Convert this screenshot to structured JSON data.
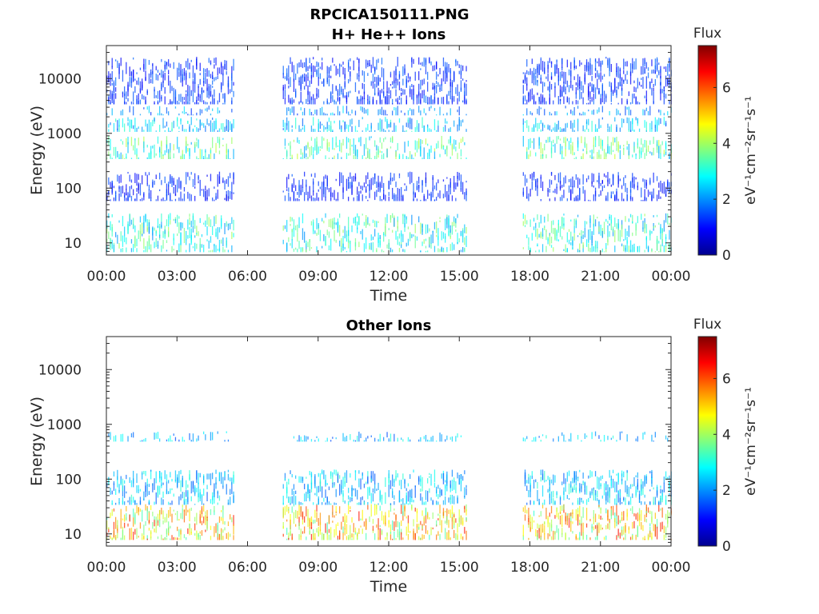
{
  "figure_title": "RPCICA150111.PNG",
  "chart_data": [
    {
      "type": "heatmap",
      "title": "H+ He++ Ions",
      "xlabel": "Time",
      "ylabel": "Energy (eV)",
      "yscale": "log",
      "ylim": [
        6,
        40000
      ],
      "xlim": [
        0,
        24
      ],
      "xticks": [
        0,
        3,
        6,
        9,
        12,
        15,
        18,
        21,
        24
      ],
      "xtick_labels": [
        "00:00",
        "03:00",
        "06:00",
        "09:00",
        "12:00",
        "15:00",
        "18:00",
        "21:00",
        "00:00"
      ],
      "yticks": [
        10,
        100,
        1000,
        10000
      ],
      "ytick_labels": [
        "10",
        "100",
        "1000",
        "10000"
      ],
      "colorbar": {
        "label": "Flux",
        "units_label": "eV⁻¹cm⁻²sr⁻¹s⁻¹",
        "range": [
          0,
          7.5
        ],
        "ticks": [
          0,
          2,
          4,
          6
        ],
        "tick_labels": [
          "0",
          "2",
          "4",
          "6"
        ],
        "colormap": "jet"
      },
      "data_intervals_hours": [
        [
          0,
          5.4
        ],
        [
          7.5,
          15.3
        ],
        [
          17.7,
          24
        ]
      ],
      "bands": [
        {
          "e_low": 7,
          "e_high": 35,
          "flux": 3.0
        },
        {
          "e_low": 60,
          "e_high": 200,
          "flux": 1.2
        },
        {
          "e_low": 350,
          "e_high": 900,
          "flux": 3.2
        },
        {
          "e_low": 1100,
          "e_high": 2000,
          "flux": 2.4
        },
        {
          "e_low": 2200,
          "e_high": 3200,
          "flux": 2.0
        },
        {
          "e_low": 3500,
          "e_high": 25000,
          "flux": 1.3
        }
      ]
    },
    {
      "type": "heatmap",
      "title": "Other Ions",
      "xlabel": "Time",
      "ylabel": "Energy (eV)",
      "yscale": "log",
      "ylim": [
        6,
        40000
      ],
      "xlim": [
        0,
        24
      ],
      "xticks": [
        0,
        3,
        6,
        9,
        12,
        15,
        18,
        21,
        24
      ],
      "xtick_labels": [
        "00:00",
        "03:00",
        "06:00",
        "09:00",
        "12:00",
        "15:00",
        "18:00",
        "21:00",
        "00:00"
      ],
      "yticks": [
        10,
        100,
        1000,
        10000
      ],
      "ytick_labels": [
        "10",
        "100",
        "1000",
        "10000"
      ],
      "colorbar": {
        "label": "Flux",
        "units_label": "eV⁻¹cm⁻²sr⁻¹s⁻¹",
        "range": [
          0,
          7.5
        ],
        "ticks": [
          0,
          2,
          4,
          6
        ],
        "tick_labels": [
          "0",
          "2",
          "4",
          "6"
        ],
        "colormap": "jet"
      },
      "data_intervals_hours": [
        [
          0,
          5.4
        ],
        [
          7.5,
          15.3
        ],
        [
          17.7,
          24
        ]
      ],
      "bands": [
        {
          "e_low": 8,
          "e_high": 35,
          "flux": 4.8
        },
        {
          "e_low": 35,
          "e_high": 150,
          "flux": 2.4
        },
        {
          "e_low": 500,
          "e_high": 750,
          "flux": 2.3
        }
      ]
    }
  ]
}
